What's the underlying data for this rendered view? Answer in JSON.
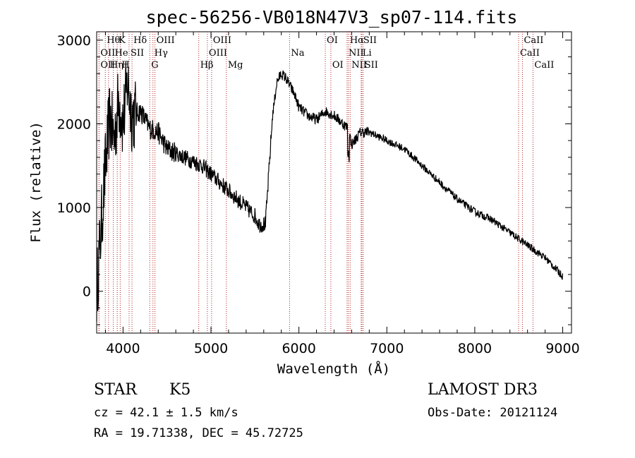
{
  "chart_data": {
    "type": "line",
    "title": "spec-56256-VB018N47V3_sp07-114.fits",
    "xlabel": "Wavelength (Å)",
    "ylabel": "Flux (relative)",
    "xlim": [
      3700,
      9100
    ],
    "ylim": [
      -500,
      3100
    ],
    "xticks": [
      4000,
      5000,
      6000,
      7000,
      8000,
      9000
    ],
    "yticks": [
      0,
      1000,
      2000,
      3000
    ],
    "x_tick_labels": [
      "4000",
      "5000",
      "6000",
      "7000",
      "8000",
      "9000"
    ],
    "y_tick_labels": [
      "0",
      "1000",
      "2000",
      "3000"
    ],
    "series": [
      {
        "name": "spectrum",
        "x": [
          3700,
          3760,
          3800,
          3850,
          3900,
          3950,
          4000,
          4050,
          4100,
          4200,
          4300,
          4400,
          4500,
          4600,
          4700,
          4800,
          4900,
          5000,
          5100,
          5200,
          5300,
          5400,
          5500,
          5550,
          5620,
          5700,
          5750,
          5800,
          5850,
          5900,
          5950,
          6000,
          6100,
          6200,
          6300,
          6400,
          6500,
          6563,
          6600,
          6700,
          6800,
          6900,
          7000,
          7200,
          7400,
          7600,
          7800,
          8000,
          8200,
          8400,
          8600,
          8800,
          9000
        ],
        "values": [
          0,
          900,
          1500,
          2100,
          1800,
          2300,
          2000,
          2500,
          2100,
          2150,
          1950,
          1900,
          1700,
          1650,
          1600,
          1550,
          1500,
          1400,
          1300,
          1200,
          1100,
          1000,
          900,
          800,
          800,
          2100,
          2500,
          2600,
          2550,
          2450,
          2350,
          2200,
          2100,
          2050,
          2150,
          2100,
          2000,
          1950,
          1750,
          1900,
          1900,
          1850,
          1800,
          1700,
          1500,
          1300,
          1100,
          950,
          850,
          700,
          550,
          400,
          180
        ]
      }
    ],
    "line_markers": [
      {
        "label": "OII",
        "x": 3727,
        "row": 3
      },
      {
        "label": "Hθ",
        "x": 3798,
        "row": 1
      },
      {
        "label": "OII",
        "x": 3727,
        "row": 2
      },
      {
        "label": "Hη",
        "x": 3835,
        "row": 3
      },
      {
        "label": "He",
        "x": 3889,
        "row": 2
      },
      {
        "label": "K",
        "x": 3934,
        "row": 1
      },
      {
        "label": "H",
        "x": 3968,
        "row": 3
      },
      {
        "label": "SII",
        "x": 4069,
        "row": 2
      },
      {
        "label": "Hδ",
        "x": 4102,
        "row": 1
      },
      {
        "label": "G",
        "x": 4304,
        "row": 3
      },
      {
        "label": "Hγ",
        "x": 4340,
        "row": 2
      },
      {
        "label": "OIII",
        "x": 4363,
        "row": 1
      },
      {
        "label": "Hβ",
        "x": 4861,
        "row": 3
      },
      {
        "label": "OIII",
        "x": 4959,
        "row": 2
      },
      {
        "label": "OIII",
        "x": 5007,
        "row": 1
      },
      {
        "label": "Mg",
        "x": 5175,
        "row": 3
      },
      {
        "label": "Na",
        "x": 5894,
        "row": 2
      },
      {
        "label": "OI",
        "x": 6300,
        "row": 1
      },
      {
        "label": "OI",
        "x": 6363,
        "row": 3
      },
      {
        "label": "NII",
        "x": 6548,
        "row": 2
      },
      {
        "label": "Hα",
        "x": 6563,
        "row": 1
      },
      {
        "label": "NII",
        "x": 6583,
        "row": 3
      },
      {
        "label": "SII",
        "x": 6716,
        "row": 1
      },
      {
        "label": "Li",
        "x": 6708,
        "row": 2
      },
      {
        "label": "SII",
        "x": 6731,
        "row": 3
      },
      {
        "label": "CaII",
        "x": 8498,
        "row": 2
      },
      {
        "label": "CaII",
        "x": 8542,
        "row": 1
      },
      {
        "label": "CaII",
        "x": 8662,
        "row": 3
      }
    ]
  },
  "info": {
    "object_class": "STAR",
    "subclass": "K5",
    "survey": "LAMOST DR3",
    "cz": "cz = 42.1 ± 1.5 km/s",
    "obs_date": "Obs-Date: 20121124",
    "coords": "RA =  19.71338, DEC =  45.72725"
  },
  "colors": {
    "spectrum": "#000000",
    "marker": "#b22222"
  }
}
